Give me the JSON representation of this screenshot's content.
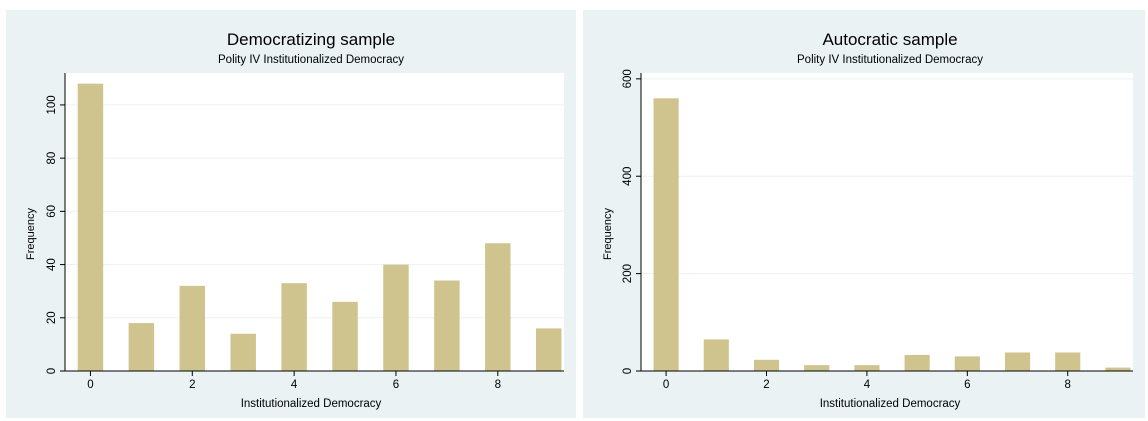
{
  "chart_data": [
    {
      "type": "bar",
      "title": "Democratizing sample",
      "subtitle": "Polity IV Institutionalized Democracy",
      "xlabel": "Institutionalized Democracy",
      "ylabel": "Frequency",
      "x": [
        0,
        1,
        2,
        3,
        4,
        5,
        6,
        7,
        8,
        9
      ],
      "values": [
        108,
        18,
        32,
        14,
        33,
        26,
        40,
        34,
        48,
        16
      ],
      "xticks": [
        "0",
        "2",
        "4",
        "6",
        "8"
      ],
      "yticks": [
        "0",
        "20",
        "40",
        "60",
        "80",
        "100"
      ],
      "xlim": [
        -0.5,
        9.3
      ],
      "ylim": [
        0,
        112
      ],
      "grid": true,
      "bar_color": "#cfc38e"
    },
    {
      "type": "bar",
      "title": "Autocratic sample",
      "subtitle": "Polity IV Institutionalized Democracy",
      "xlabel": "Institutionalized Democracy",
      "ylabel": "Frequency",
      "x": [
        0,
        1,
        2,
        3,
        4,
        5,
        6,
        7,
        8,
        9
      ],
      "values": [
        560,
        65,
        23,
        12,
        12,
        33,
        30,
        38,
        38,
        7
      ],
      "xticks": [
        "0",
        "2",
        "4",
        "6",
        "8"
      ],
      "yticks": [
        "0",
        "200",
        "400",
        "600"
      ],
      "xlim": [
        -0.5,
        9.3
      ],
      "ylim": [
        0,
        612
      ],
      "grid": true,
      "bar_color": "#cfc38e"
    }
  ]
}
